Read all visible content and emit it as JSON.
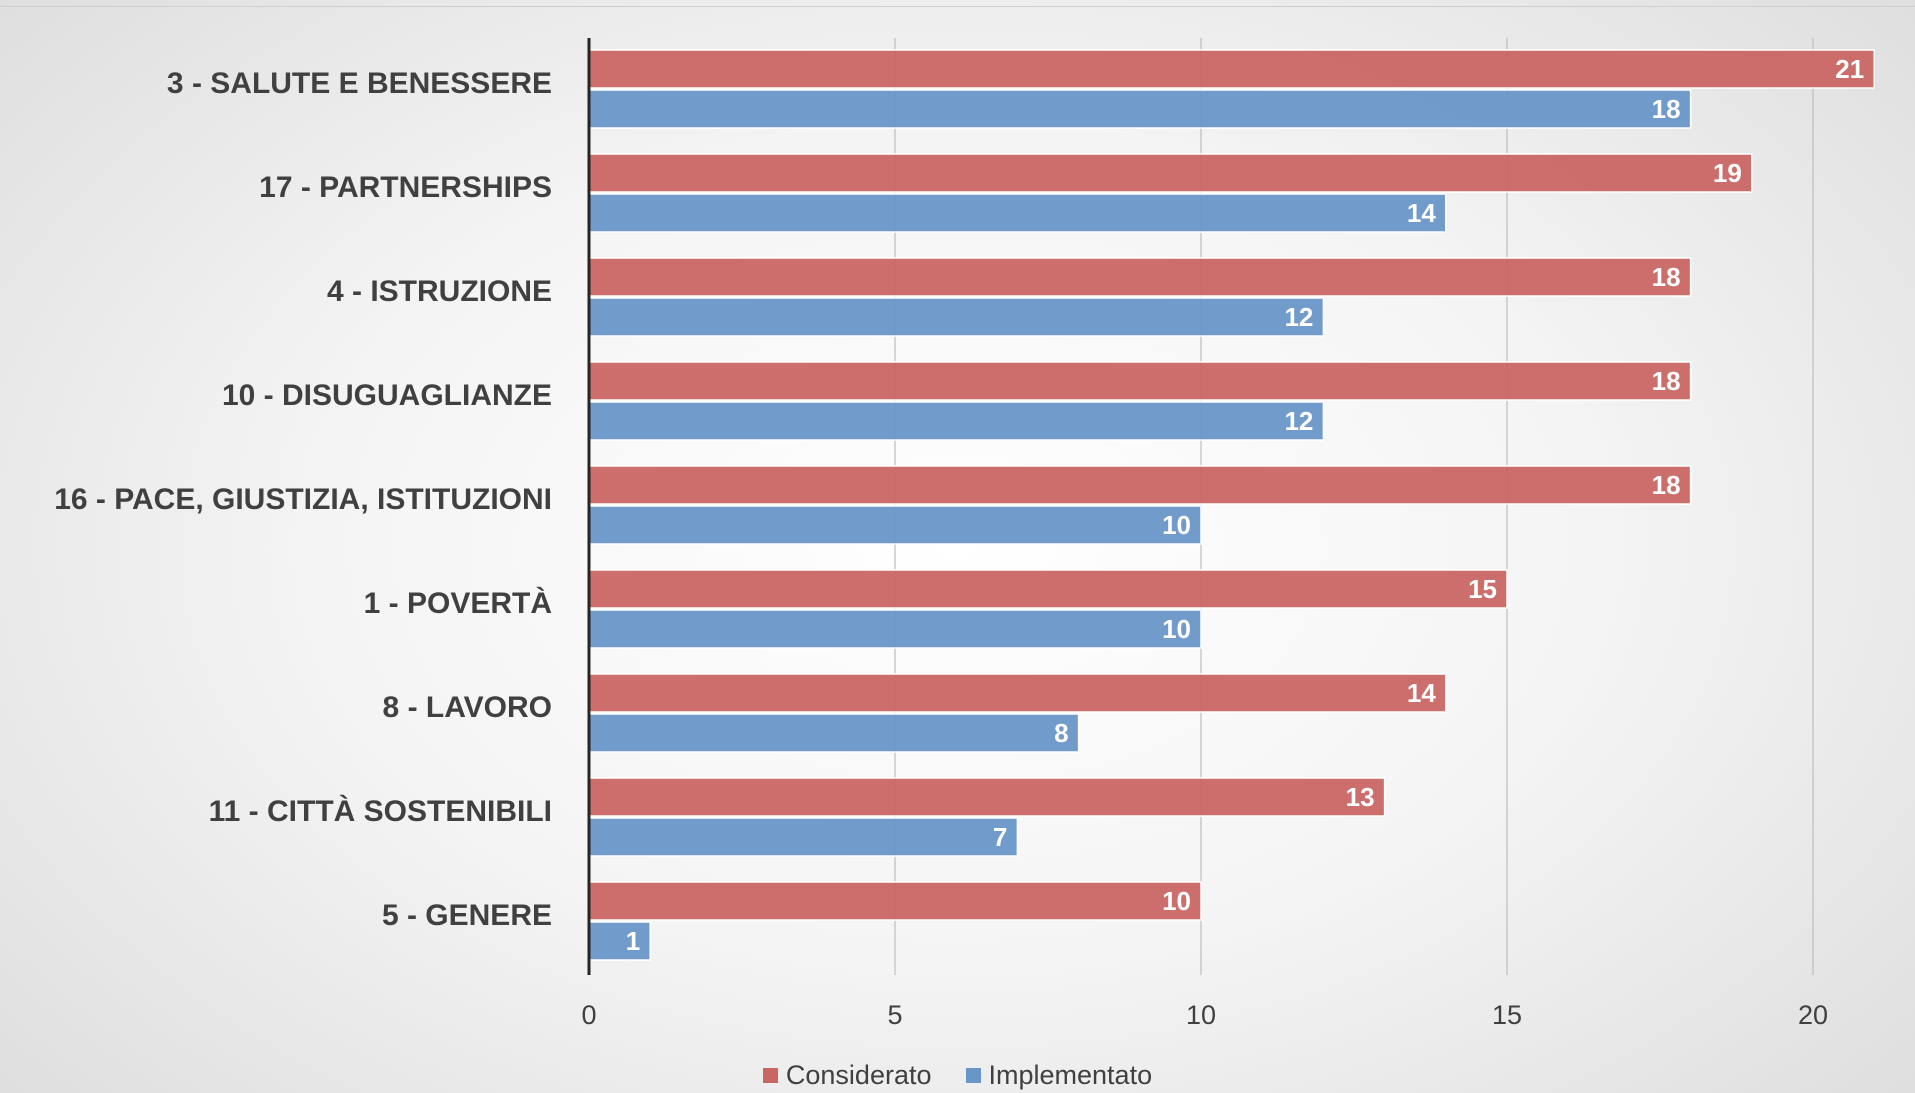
{
  "chart_data": {
    "type": "bar",
    "orientation": "horizontal",
    "categories": [
      "3 - SALUTE E BENESSERE",
      "17 - PARTNERSHIPS",
      "4 - ISTRUZIONE",
      "10 - DISUGUAGLIANZE",
      "16 - PACE, GIUSTIZIA, ISTITUZIONI",
      "1 - POVERTÀ",
      "8 - LAVORO",
      "11 - CITTÀ SOSTENIBILI",
      "5 - GENERE"
    ],
    "series": [
      {
        "name": "Considerato",
        "color": "#c96664",
        "values": [
          21,
          19,
          18,
          18,
          18,
          15,
          14,
          13,
          10
        ]
      },
      {
        "name": "Implementato",
        "color": "#6896c8",
        "values": [
          18,
          14,
          12,
          12,
          10,
          10,
          8,
          7,
          1
        ]
      }
    ],
    "x_ticks": [
      "0",
      "5",
      "10",
      "15",
      "20"
    ],
    "xlim": [
      0,
      21
    ],
    "grid": true,
    "legend": "bottom",
    "data_labels": true
  }
}
